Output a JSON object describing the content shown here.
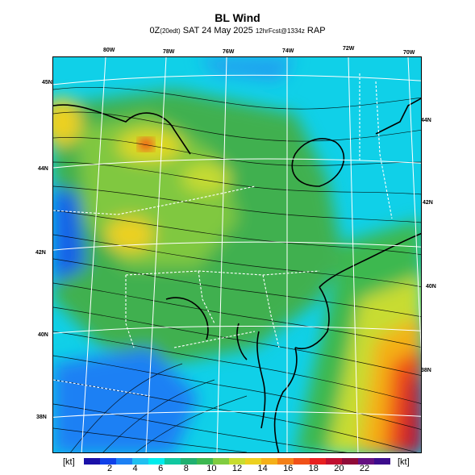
{
  "title": "BL Wind",
  "subtitle": {
    "prefix": "0Z",
    "day_note": "(20edt)",
    "date": "SAT 24 May 2025",
    "fcst_note": "12hrFcst@1334z",
    "model": "RAP"
  },
  "top_labels": [
    "80W",
    "78W",
    "76W",
    "74W",
    "72W",
    "70W"
  ],
  "left_labels": [
    "45N",
    "44N",
    "42N",
    "40N",
    "38N"
  ],
  "right_labels": [
    "44N",
    "42N",
    "40N",
    "38N"
  ],
  "legend": {
    "unit_left": "[kt]",
    "unit_right": "[kt]",
    "ticks": [
      "2",
      "4",
      "6",
      "8",
      "10",
      "12",
      "14",
      "16",
      "18",
      "20",
      "22"
    ],
    "colors": [
      "#1a10a8",
      "#1040e8",
      "#1c80f4",
      "#20c0f0",
      "#00ecec",
      "#10c8a0",
      "#20b070",
      "#3cb850",
      "#80cc40",
      "#c8dc30",
      "#ecd020",
      "#f4b018",
      "#f48018",
      "#f05018",
      "#e82020",
      "#c01030",
      "#900c38",
      "#641080",
      "#3c0c8c"
    ]
  },
  "map": {
    "fields": {
      "ocean_low": "#10c0f0",
      "land_mid": "#40b050",
      "strong": "#f05018"
    }
  }
}
